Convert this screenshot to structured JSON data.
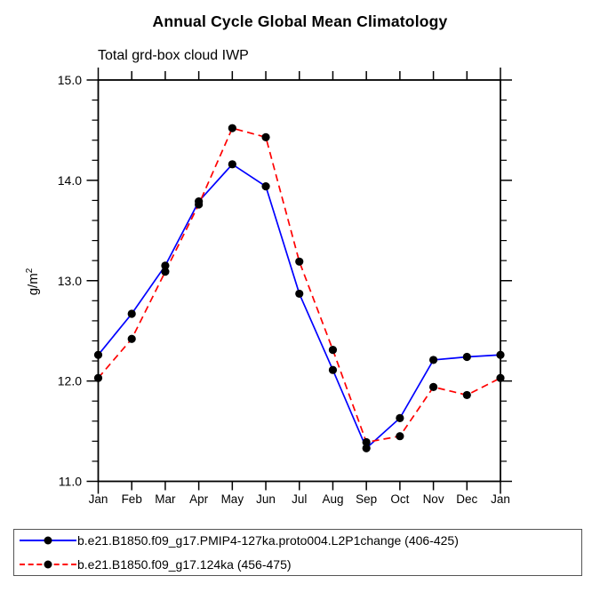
{
  "page": {
    "title": "Annual Cycle Global Mean Climatology",
    "subtitle": "Total grd-box cloud IWP",
    "ylabel_base": "g/m",
    "ylabel_exp": "2"
  },
  "chart_data": {
    "type": "line",
    "title": "Annual Cycle Global Mean Climatology",
    "subtitle": "Total grd-box cloud IWP",
    "xlabel": "",
    "ylabel": "g/m^2",
    "categories": [
      "Jan",
      "Feb",
      "Mar",
      "Apr",
      "May",
      "Jun",
      "Jul",
      "Aug",
      "Sep",
      "Oct",
      "Nov",
      "Dec",
      "Jan"
    ],
    "ylim": [
      11.0,
      15.0
    ],
    "ytick_labels": [
      "11.0",
      "12.0",
      "13.0",
      "14.0",
      "15.0"
    ],
    "yticks_major": [
      11.0,
      12.0,
      13.0,
      14.0,
      15.0
    ],
    "yminor_step": 0.2,
    "grid": false,
    "legend_position": "bottom",
    "axis_color": "#000000",
    "series": [
      {
        "name": "b.e21.B1850.f09_g17.PMIP4-127ka.proto004.L2P1change (406-425)",
        "color": "#0000ff",
        "line_style": "solid",
        "marker": "circle",
        "marker_color": "#000000",
        "values": [
          12.26,
          12.67,
          13.15,
          13.79,
          14.16,
          13.94,
          12.87,
          12.11,
          11.33,
          11.63,
          12.21,
          12.24,
          12.26
        ]
      },
      {
        "name": "b.e21.B1850.f09_g17.124ka (456-475)",
        "color": "#ff0000",
        "line_style": "dashed",
        "marker": "circle",
        "marker_color": "#000000",
        "values": [
          12.03,
          12.42,
          13.09,
          13.76,
          14.52,
          14.43,
          13.19,
          12.31,
          11.39,
          11.45,
          11.94,
          11.86,
          12.03
        ]
      }
    ]
  }
}
